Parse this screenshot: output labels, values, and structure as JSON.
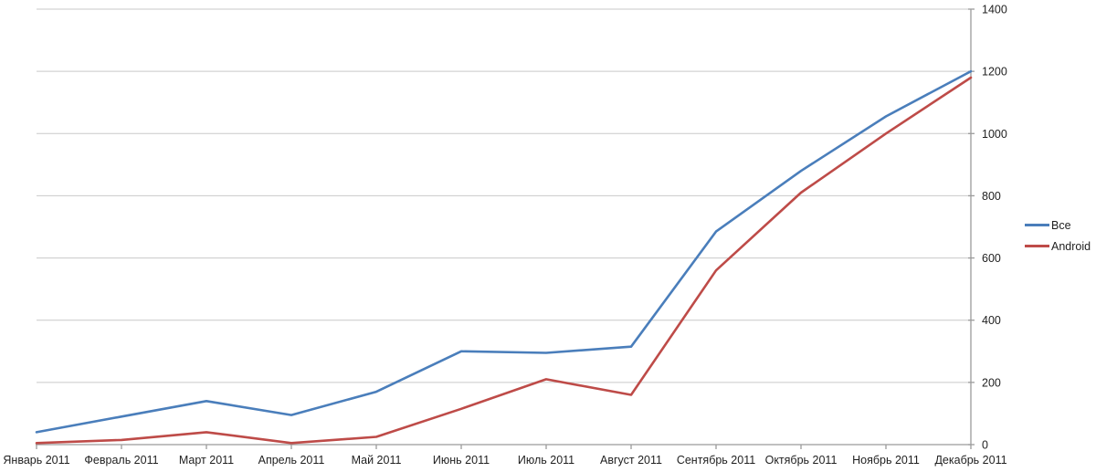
{
  "chart_data": {
    "type": "line",
    "title": "",
    "xlabel": "",
    "ylabel": "",
    "categories": [
      "Январь 2011",
      "Февраль 2011",
      "Март 2011",
      "Апрель 2011",
      "Май 2011",
      "Июнь 2011",
      "Июль 2011",
      "Август 2011",
      "Сентябрь 2011",
      "Октябрь 2011",
      "Ноябрь 2011",
      "Декабрь 2011"
    ],
    "series": [
      {
        "name": "Все",
        "color": "#4A7EBB",
        "values": [
          40,
          90,
          140,
          95,
          170,
          300,
          295,
          315,
          685,
          880,
          1055,
          1200
        ]
      },
      {
        "name": "Android",
        "color": "#BE4B48",
        "values": [
          5,
          15,
          40,
          5,
          25,
          115,
          210,
          160,
          560,
          810,
          1000,
          1180
        ]
      }
    ],
    "ylim": [
      0,
      1400
    ],
    "ytick_step": 200,
    "ytick_labels": [
      "0",
      "200",
      "400",
      "600",
      "800",
      "1000",
      "1200",
      "1400"
    ],
    "grid": true,
    "y_axis_side": "right",
    "legend_position": "right"
  },
  "colors": {
    "background": "#FFFFFF",
    "gridline": "#C9C9C9",
    "axis": "#9B9B9B",
    "text": "#1F1F1F"
  }
}
